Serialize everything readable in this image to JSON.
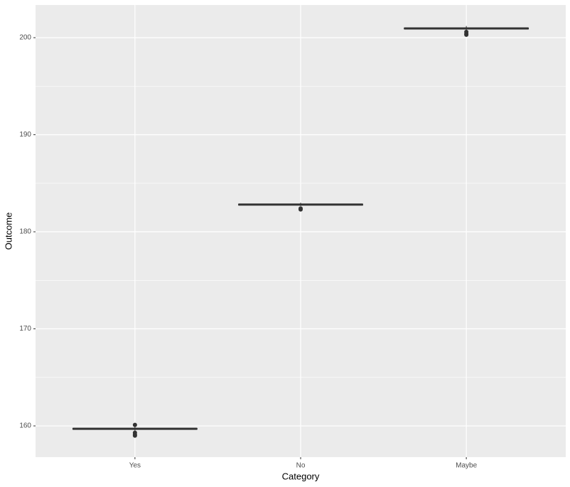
{
  "chart_data": {
    "type": "box",
    "x_label": "Category",
    "y_label": "Outcome",
    "categories": [
      "Yes",
      "No",
      "Maybe"
    ],
    "boxes": [
      {
        "whisker_low": 159.5,
        "q1": 159.65,
        "median": 159.7,
        "q3": 159.75,
        "whisker_high": 159.9,
        "outliers": [
          160.1,
          159.3,
          159.1,
          159.0
        ]
      },
      {
        "whisker_low": 182.65,
        "q1": 182.75,
        "median": 182.8,
        "q3": 182.85,
        "whisker_high": 183.0,
        "outliers": [
          182.4,
          182.3
        ]
      },
      {
        "whisker_low": 200.8,
        "q1": 200.9,
        "median": 200.95,
        "q3": 201.0,
        "whisker_high": 201.2,
        "outliers": [
          200.6,
          200.4,
          200.3
        ]
      }
    ],
    "color": "#333333",
    "ylim": [
      156.78,
      203.37
    ],
    "yticks": [
      160,
      170,
      180,
      190,
      200
    ],
    "minor_yticks": [
      165,
      175,
      185,
      195
    ],
    "grid": true,
    "panel_color": "#ebebeb"
  }
}
